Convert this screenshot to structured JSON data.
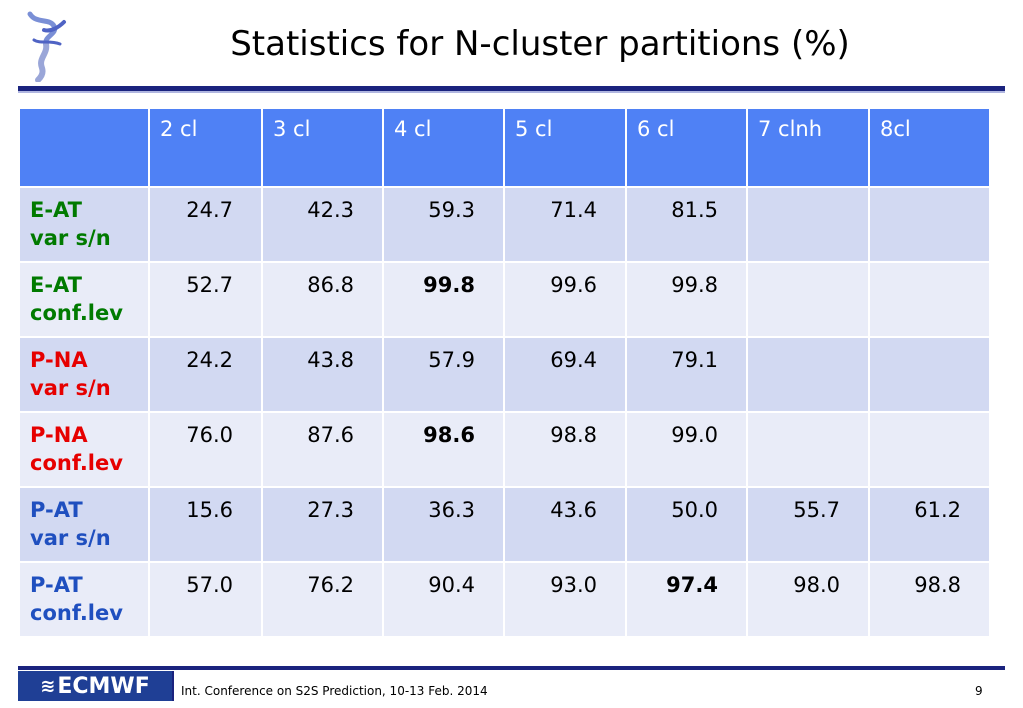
{
  "title": "Statistics for N-cluster partitions (%)",
  "table": {
    "headers": [
      "",
      "2 cl",
      "3 cl",
      "4 cl",
      "5 cl",
      "6 cl",
      "7 clnh",
      "8cl"
    ],
    "rows": [
      {
        "label1": "E-AT",
        "label2": "var s/n",
        "color": "green",
        "values": [
          "24.7",
          "42.3",
          "59.3",
          "71.4",
          "81.5",
          "",
          ""
        ],
        "bold": []
      },
      {
        "label1": "E-AT",
        "label2": "conf.lev",
        "color": "green",
        "values": [
          "52.7",
          "86.8",
          "99.8",
          "99.6",
          "99.8",
          "",
          ""
        ],
        "bold": [
          2
        ]
      },
      {
        "label1": "P-NA",
        "label2": "var s/n",
        "color": "red",
        "values": [
          "24.2",
          "43.8",
          "57.9",
          "69.4",
          "79.1",
          "",
          ""
        ],
        "bold": []
      },
      {
        "label1": "P-NA",
        "label2": "conf.lev",
        "color": "red",
        "values": [
          "76.0",
          "87.6",
          "98.6",
          "98.8",
          "99.0",
          "",
          ""
        ],
        "bold": [
          2
        ]
      },
      {
        "label1": "P-AT",
        "label2": "var s/n",
        "color": "blue",
        "values": [
          "15.6",
          "27.3",
          "36.3",
          "43.6",
          "50.0",
          "55.7",
          "61.2"
        ],
        "bold": []
      },
      {
        "label1": "P-AT",
        "label2": "conf.lev",
        "color": "blue",
        "values": [
          "57.0",
          "76.2",
          "90.4",
          "93.0",
          "97.4",
          "98.0",
          "98.8"
        ],
        "bold": [
          4
        ]
      }
    ]
  },
  "footer": {
    "logo_text": "ECMWF",
    "text": "Int. Conference on S2S Prediction, 10-13 Feb. 2014",
    "page_number": "9"
  },
  "colors": {
    "header_bg": "#4f81f5",
    "row_dark": "#d2d9f2",
    "row_light": "#e9ecf8",
    "green": "#007a00",
    "red": "#e60000",
    "blue": "#1f4fbf",
    "rule": "#1a237e"
  }
}
